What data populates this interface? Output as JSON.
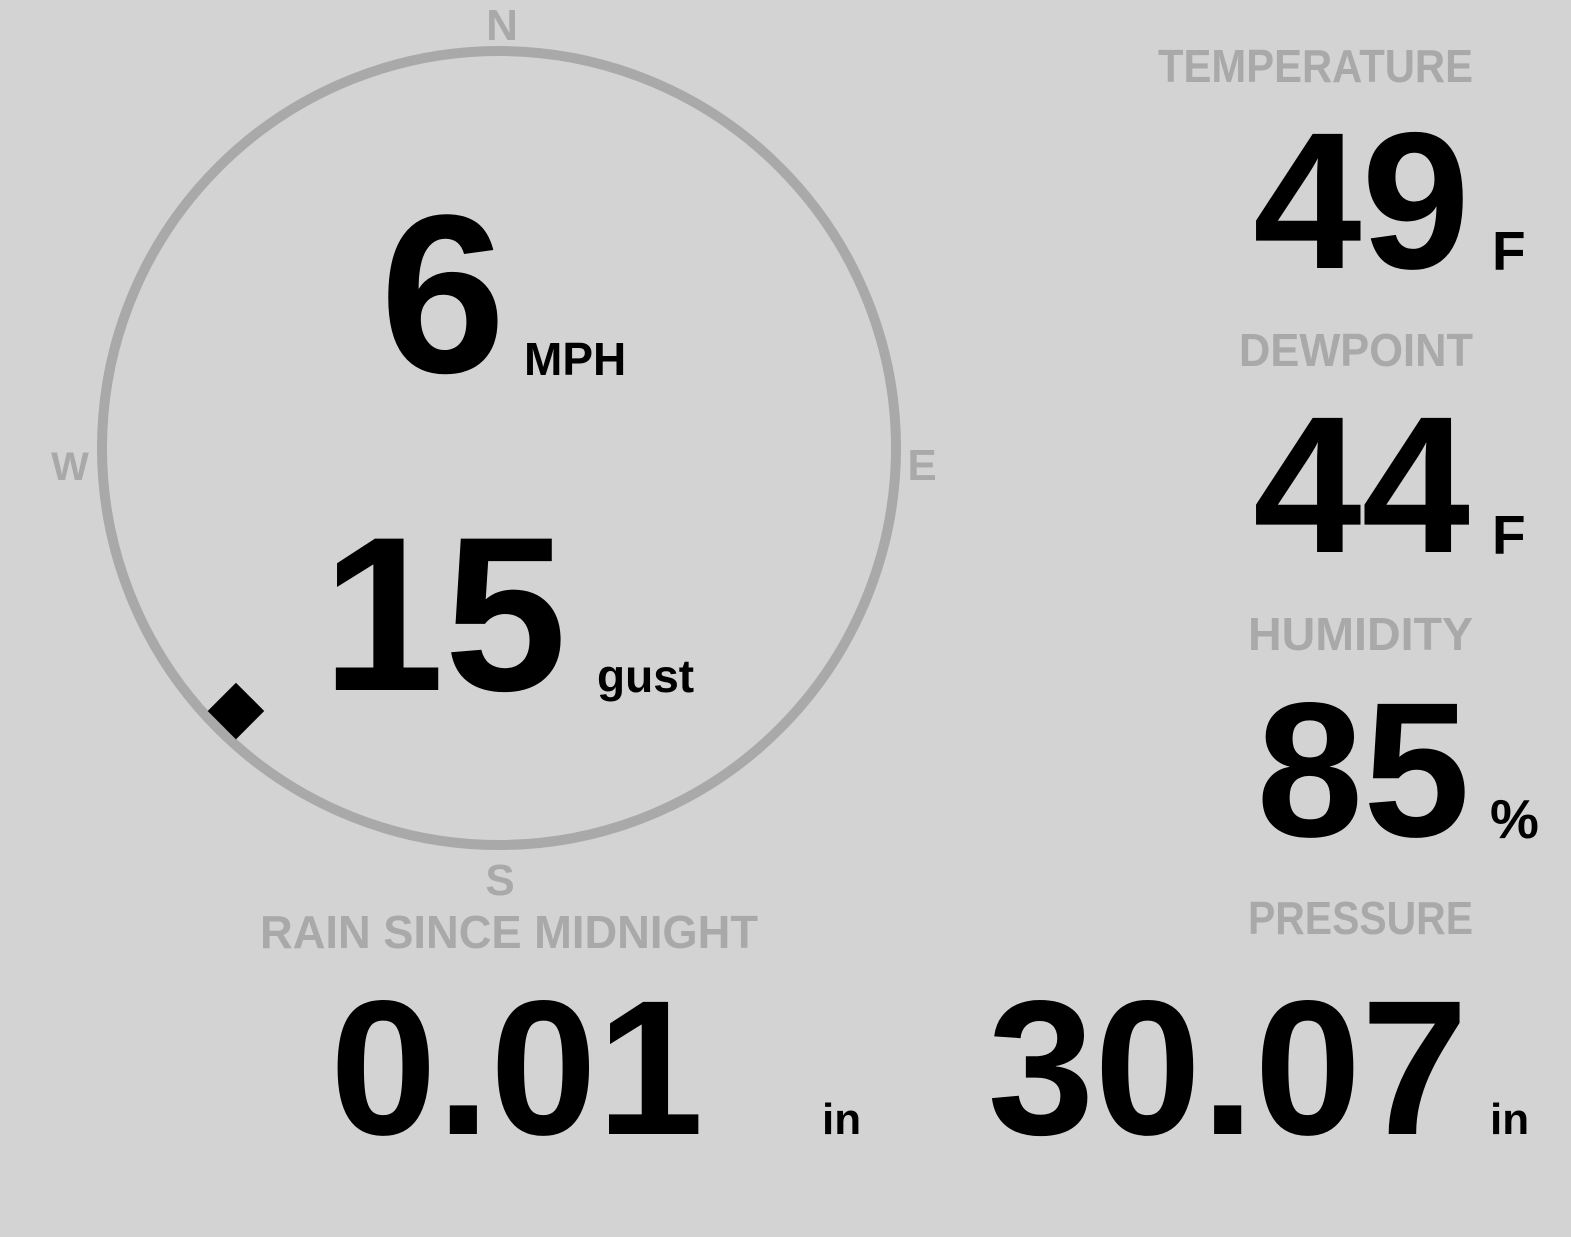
{
  "colors": {
    "background": "#d3d3d3",
    "label": "#a9a9a9",
    "value": "#000000",
    "compass_ring": "#a9a9a9"
  },
  "wind": {
    "compass": {
      "n": "N",
      "s": "S",
      "e": "E",
      "w": "W"
    },
    "direction_degrees": 225,
    "indicator_icon": "diamond-icon",
    "speed": "6",
    "speed_unit": "MPH",
    "gust": "15",
    "gust_label": "gust"
  },
  "temperature": {
    "label": "TEMPERATURE",
    "value": "49",
    "unit": "F"
  },
  "dewpoint": {
    "label": "DEWPOINT",
    "value": "44",
    "unit": "F"
  },
  "humidity": {
    "label": "HUMIDITY",
    "value": "85",
    "unit": "%"
  },
  "rain": {
    "label": "RAIN SINCE MIDNIGHT",
    "value": "0.01",
    "unit": "in"
  },
  "pressure": {
    "label": "PRESSURE",
    "value": "30.07",
    "unit": "in"
  }
}
